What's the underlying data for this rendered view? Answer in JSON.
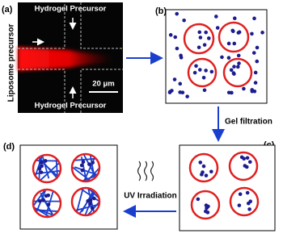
{
  "panels": {
    "a": {
      "label": "(a)",
      "top_label": "Hydrogel Precursor",
      "side_label": "Liposome precursor",
      "bottom_label": "Hydrogel Precursor",
      "scale_bar": "20 μm"
    },
    "b": {
      "label": "(b)"
    },
    "c": {
      "label": "(c)"
    },
    "d": {
      "label": "(d)"
    }
  },
  "steps": {
    "filtration": "Gel filtration",
    "irradiation": "UV Irradiation"
  }
}
